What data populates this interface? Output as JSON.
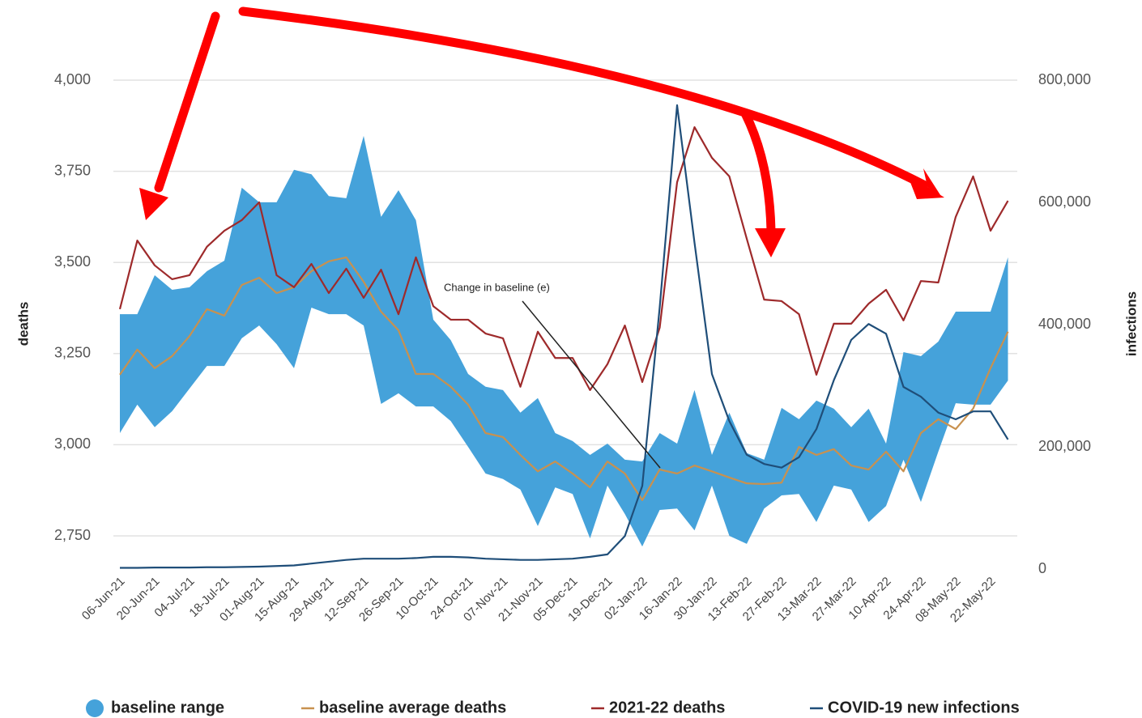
{
  "chart_data": {
    "type": "line",
    "annotation": "Change in baseline (e)",
    "ylabel": "deaths",
    "y2label": "infections",
    "categories": [
      "06-Jun-21",
      null,
      "20-Jun-21",
      null,
      "04-Jul-21",
      null,
      "18-Jul-21",
      null,
      "01-Aug-21",
      null,
      "15-Aug-21",
      null,
      "29-Aug-21",
      null,
      "12-Sep-21",
      null,
      "26-Sep-21",
      null,
      "10-Oct-21",
      null,
      "24-Oct-21",
      null,
      "07-Nov-21",
      null,
      "21-Nov-21",
      null,
      "05-Dec-21",
      null,
      "19-Dec-21",
      null,
      "02-Jan-22",
      null,
      "16-Jan-22",
      null,
      "30-Jan-22",
      null,
      "13-Feb-22",
      null,
      "27-Feb-22",
      null,
      "13-Mar-22",
      null,
      "27-Mar-22",
      null,
      "10-Apr-22",
      null,
      "24-Apr-22",
      null,
      "08-May-22",
      null,
      "22-May-22",
      null
    ],
    "ylim": [
      2659,
      4000
    ],
    "yticks": [
      {
        "value": 2750,
        "label": "2,750"
      },
      {
        "value": 3000,
        "label": "3,000"
      },
      {
        "value": 3250,
        "label": "3,250"
      },
      {
        "value": 3500,
        "label": "3,500"
      },
      {
        "value": 3750,
        "label": "3,750"
      },
      {
        "value": 4000,
        "label": "4,000"
      }
    ],
    "y2lim": [
      0,
      800000
    ],
    "y2ticks": [
      0,
      {
        "value": 200000,
        "label": "200,000"
      },
      {
        "value": 400000,
        "label": "400,000"
      },
      {
        "value": 600000,
        "label": "600,000"
      },
      {
        "value": 800000,
        "label": "800,000"
      }
    ],
    "grid": true,
    "range": {
      "name": "baseline range",
      "color": "#45a2da",
      "upper": [
        3358,
        3358,
        3465,
        3425,
        3432,
        3476,
        3505,
        3705,
        3665,
        3665,
        3754,
        3742,
        3682,
        3676,
        3847,
        3625,
        3698,
        3616,
        3343,
        3287,
        3194,
        3159,
        3150,
        3088,
        3128,
        3032,
        3010,
        2972,
        3003,
        2959,
        2954,
        3032,
        3003,
        3150,
        2972,
        3088,
        2977,
        2959,
        3101,
        3070,
        3121,
        3099,
        3048,
        3099,
        3003,
        3254,
        3243,
        3283,
        3365,
        3365,
        3365,
        3514
      ],
      "lower": [
        3032,
        3110,
        3048,
        3092,
        3154,
        3216,
        3216,
        3292,
        3327,
        3276,
        3210,
        3376,
        3358,
        3358,
        3327,
        3112,
        3141,
        3105,
        3105,
        3065,
        2994,
        2921,
        2906,
        2877,
        2777,
        2883,
        2865,
        2743,
        2888,
        2810,
        2721,
        2821,
        2825,
        2765,
        2888,
        2750,
        2728,
        2825,
        2861,
        2865,
        2788,
        2888,
        2877,
        2788,
        2832,
        2959,
        2843,
        2981,
        3114,
        3110,
        3110,
        3176
      ]
    },
    "series": [
      {
        "name": "baseline average deaths",
        "color": "#c8914f",
        "values": [
          3192,
          3261,
          3210,
          3243,
          3298,
          3372,
          3354,
          3438,
          3458,
          3416,
          3432,
          3476,
          3503,
          3514,
          3447,
          3365,
          3314,
          3194,
          3194,
          3159,
          3110,
          3032,
          3021,
          2972,
          2927,
          2954,
          2921,
          2883,
          2954,
          2921,
          2848,
          2932,
          2921,
          2943,
          2927,
          2910,
          2894,
          2892,
          2896,
          2994,
          2972,
          2988,
          2943,
          2932,
          2981,
          2927,
          3032,
          3070,
          3043,
          3099,
          3210,
          3310
        ]
      },
      {
        "name": "2021-22 deaths",
        "color": "#9e2a2b",
        "values": [
          3372,
          3560,
          3492,
          3454,
          3465,
          3543,
          3587,
          3616,
          3665,
          3465,
          3432,
          3496,
          3416,
          3483,
          3403,
          3480,
          3358,
          3514,
          3380,
          3343,
          3343,
          3305,
          3292,
          3159,
          3310,
          3238,
          3238,
          3150,
          3221,
          3327,
          3172,
          3321,
          3720,
          3871,
          3787,
          3736,
          3565,
          3398,
          3394,
          3358,
          3192,
          3332,
          3332,
          3387,
          3425,
          3341,
          3449,
          3445,
          3625,
          3736,
          3587,
          3669
        ]
      },
      {
        "name": "COVID-19 new infections",
        "color": "#1f4e79",
        "axis": "y2",
        "values": [
          2000,
          2000,
          2500,
          2500,
          2500,
          3000,
          3000,
          3500,
          4000,
          5000,
          6000,
          9000,
          12000,
          15000,
          17000,
          17000,
          17000,
          18000,
          20000,
          20000,
          19000,
          17000,
          16000,
          15000,
          15000,
          16000,
          17000,
          20000,
          24000,
          54000,
          136000,
          428000,
          759000,
          534000,
          319000,
          242000,
          187000,
          172000,
          166000,
          183000,
          229000,
          309000,
          375000,
          401000,
          385000,
          298000,
          282000,
          256000,
          245000,
          258000,
          258000,
          212000
        ]
      }
    ]
  }
}
